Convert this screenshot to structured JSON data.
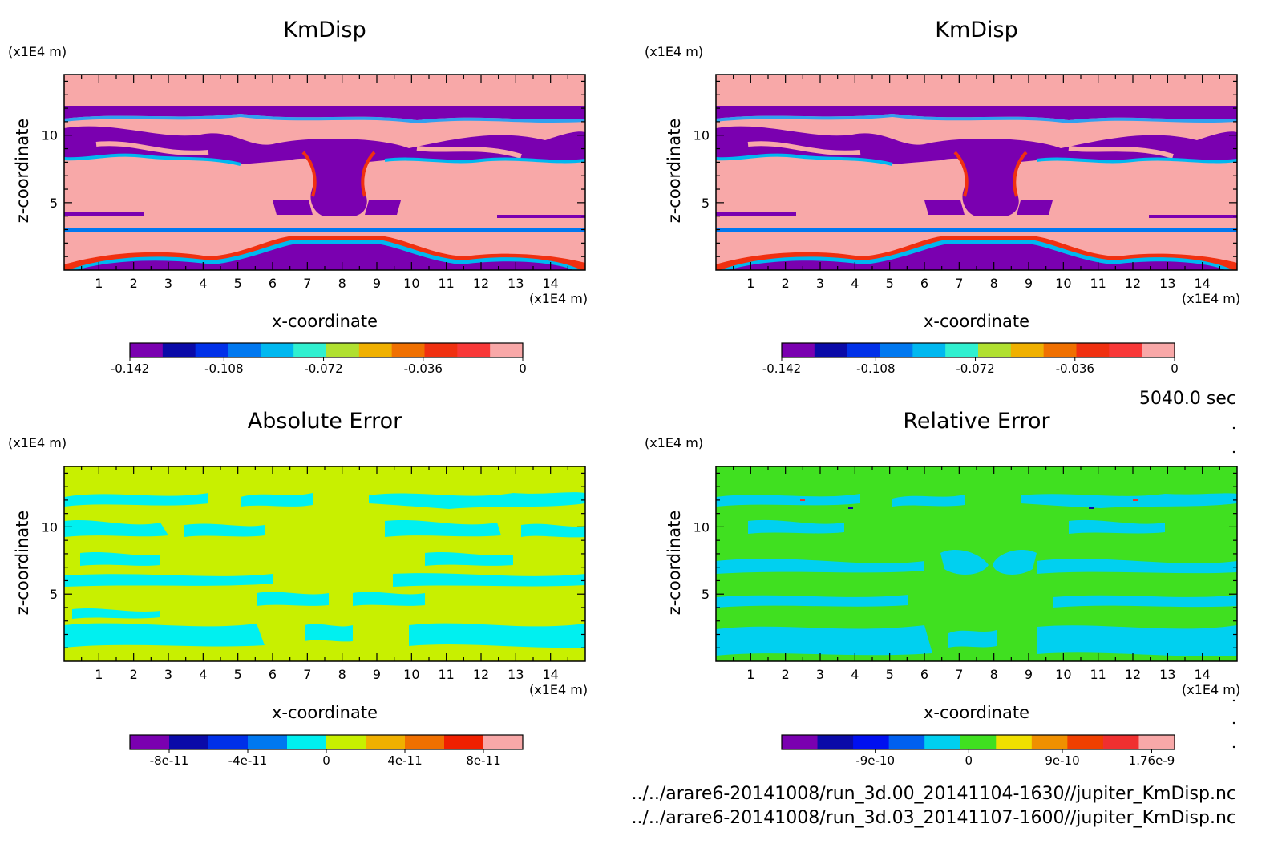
{
  "chart_data": [
    {
      "type": "heatmap",
      "title": "KmDisp",
      "xlabel": "x-coordinate",
      "ylabel": "z-coordinate",
      "x_unit": "(x1E4 m)",
      "y_unit": "(x1E4 m)",
      "x_ticks": [
        "1",
        "2",
        "3",
        "4",
        "5",
        "6",
        "7",
        "8",
        "9",
        "10",
        "11",
        "12",
        "13",
        "14"
      ],
      "y_ticks": [
        "5",
        "10"
      ],
      "xlim": [
        0,
        15
      ],
      "ylim": [
        0,
        14.5
      ],
      "colorbar": {
        "colors": [
          "#7a00b0",
          "#0a0aa8",
          "#0030e8",
          "#0078f0",
          "#00b8f0",
          "#30f0d0",
          "#b0e030",
          "#f0b000",
          "#f07000",
          "#f03010",
          "#f83838",
          "#f8a8a8"
        ],
        "tick_labels": [
          "-0.142",
          "-0.108",
          "-0.072",
          "-0.036",
          "0"
        ],
        "tick_values": [
          -0.142,
          -0.108,
          -0.072,
          -0.036,
          0
        ],
        "range": [
          -0.142,
          0
        ]
      }
    },
    {
      "type": "heatmap",
      "title": "KmDisp",
      "xlabel": "x-coordinate",
      "ylabel": "z-coordinate",
      "x_unit": "(x1E4 m)",
      "y_unit": "(x1E4 m)",
      "x_ticks": [
        "1",
        "2",
        "3",
        "4",
        "5",
        "6",
        "7",
        "8",
        "9",
        "10",
        "11",
        "12",
        "13",
        "14"
      ],
      "y_ticks": [
        "5",
        "10"
      ],
      "xlim": [
        0,
        15
      ],
      "ylim": [
        0,
        14.5
      ],
      "colorbar": {
        "colors": [
          "#7a00b0",
          "#0a0aa8",
          "#0030e8",
          "#0078f0",
          "#00b8f0",
          "#30f0d0",
          "#b0e030",
          "#f0b000",
          "#f07000",
          "#f03010",
          "#f83838",
          "#f8a8a8"
        ],
        "tick_labels": [
          "-0.142",
          "-0.108",
          "-0.072",
          "-0.036",
          "0"
        ],
        "tick_values": [
          -0.142,
          -0.108,
          -0.072,
          -0.036,
          0
        ],
        "range": [
          -0.142,
          0
        ]
      }
    },
    {
      "type": "heatmap",
      "title": "Absolute Error",
      "xlabel": "x-coordinate",
      "ylabel": "z-coordinate",
      "x_unit": "(x1E4 m)",
      "y_unit": "(x1E4 m)",
      "x_ticks": [
        "1",
        "2",
        "3",
        "4",
        "5",
        "6",
        "7",
        "8",
        "9",
        "10",
        "11",
        "12",
        "13",
        "14"
      ],
      "y_ticks": [
        "5",
        "10"
      ],
      "xlim": [
        0,
        15
      ],
      "ylim": [
        0,
        14.5
      ],
      "colorbar": {
        "colors": [
          "#7a00b0",
          "#0a0aa8",
          "#0030e8",
          "#0078f0",
          "#00f0f0",
          "#c8f000",
          "#f0b000",
          "#f07000",
          "#f02000",
          "#f8a8a8"
        ],
        "tick_labels": [
          "-8e-11",
          "-4e-11",
          "0",
          "4e-11",
          "8e-11"
        ],
        "tick_values": [
          -8e-11,
          -4e-11,
          0,
          4e-11,
          8e-11
        ],
        "range": [
          -1e-10,
          1e-10
        ]
      }
    },
    {
      "type": "heatmap",
      "title": "Relative Error",
      "xlabel": "x-coordinate",
      "ylabel": "z-coordinate",
      "x_unit": "(x1E4 m)",
      "y_unit": "(x1E4 m)",
      "x_ticks": [
        "1",
        "2",
        "3",
        "4",
        "5",
        "6",
        "7",
        "8",
        "9",
        "10",
        "11",
        "12",
        "13",
        "14"
      ],
      "y_ticks": [
        "5",
        "10"
      ],
      "xlim": [
        0,
        15
      ],
      "ylim": [
        0,
        14.5
      ],
      "colorbar": {
        "colors": [
          "#7a00b0",
          "#0a0aa8",
          "#0010f0",
          "#0060f0",
          "#00d0f0",
          "#40e020",
          "#f0e000",
          "#f09000",
          "#f04000",
          "#f03030",
          "#f8a8a8"
        ],
        "tick_labels": [
          "-9e-10",
          "0",
          "9e-10",
          "1.76e-9"
        ],
        "tick_values": [
          -9e-10,
          0,
          9e-10,
          1.76e-09
        ],
        "range": [
          -1.8e-09,
          1.98e-09
        ]
      }
    }
  ],
  "time_label": "5040.0 sec",
  "file_paths": [
    "../../arare6-20141008/run_3d.00_20141104-1630//jupiter_KmDisp.nc",
    "../../arare6-20141008/run_3d.03_20141107-1600//jupiter_KmDisp.nc"
  ]
}
